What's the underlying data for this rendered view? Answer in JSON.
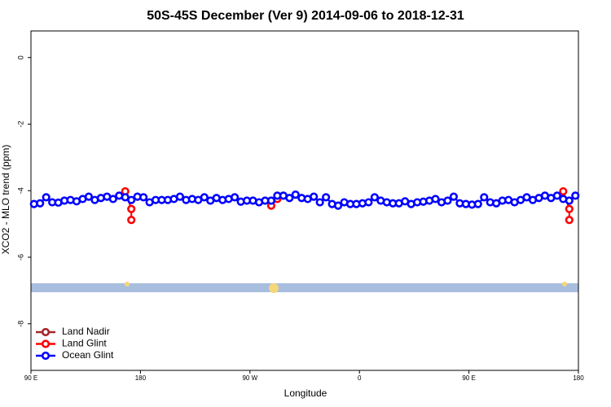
{
  "chart_data": {
    "type": "line",
    "title": "50S-45S December (Ver 9)   2014-09-06 to 2018-12-31",
    "x_label": "Longitude",
    "y_label": "XCO2 - MLO trend (ppm)",
    "xlim": [
      90,
      540
    ],
    "xticks": [
      {
        "value": 90,
        "label": "90 E"
      },
      180,
      {
        "value": 270,
        "label": "90 W"
      },
      {
        "value": 360,
        "label": "0"
      },
      {
        "value": 450,
        "label": "90 E"
      },
      {
        "value": 540,
        "label": "180"
      }
    ],
    "ylim": [
      -9.4,
      0.8
    ],
    "yticks": [
      0,
      -2,
      -4,
      -6,
      -8
    ],
    "legend": "bottom-left",
    "series": [
      {
        "name": "Land Nadir",
        "color": "#a0282a",
        "x": [],
        "values": []
      },
      {
        "name": "Land Glint",
        "color": "#ff0000",
        "x": [
          167.5,
          172.5,
          172.5,
          230,
          287.5,
          292.5,
          400,
          527.5,
          532.5,
          532.5
        ],
        "values": [
          -4.02,
          -4.55,
          -4.88,
          null,
          -4.45,
          -4.25,
          null,
          -4.02,
          -4.55,
          -4.88
        ]
      },
      {
        "name": "Ocean Glint",
        "color": "#0000ff",
        "x": [
          92.5,
          97.5,
          102.5,
          107.5,
          112.5,
          117.5,
          122.5,
          127.5,
          132.5,
          137.5,
          142.5,
          147.5,
          152.5,
          157.5,
          162.5,
          167.5,
          172.5,
          177.5,
          182.5,
          187.5,
          192.5,
          197.5,
          202.5,
          207.5,
          212.5,
          217.5,
          222.5,
          227.5,
          232.5,
          237.5,
          242.5,
          247.5,
          252.5,
          257.5,
          262.5,
          267.5,
          272.5,
          277.5,
          282.5,
          287.5,
          292.5,
          297.5,
          302.5,
          307.5,
          312.5,
          317.5,
          322.5,
          327.5,
          332.5,
          337.5,
          342.5,
          347.5,
          352.5,
          357.5,
          362.5,
          367.5,
          372.5,
          377.5,
          382.5,
          387.5,
          392.5,
          397.5,
          402.5,
          407.5,
          412.5,
          417.5,
          422.5,
          427.5,
          432.5,
          437.5,
          442.5,
          447.5,
          452.5,
          457.5,
          462.5,
          467.5,
          472.5,
          477.5,
          482.5,
          487.5,
          492.5,
          497.5,
          502.5,
          507.5,
          512.5,
          517.5,
          522.5,
          527.5,
          532.5,
          537.5
        ],
        "values": [
          -4.4,
          -4.38,
          -4.2,
          -4.35,
          -4.36,
          -4.3,
          -4.28,
          -4.32,
          -4.25,
          -4.18,
          -4.28,
          -4.22,
          -4.18,
          -4.25,
          -4.15,
          -4.2,
          -4.28,
          -4.18,
          -4.2,
          -4.35,
          -4.28,
          -4.28,
          -4.28,
          -4.25,
          -4.18,
          -4.28,
          -4.25,
          -4.28,
          -4.2,
          -4.3,
          -4.22,
          -4.28,
          -4.25,
          -4.2,
          -4.33,
          -4.3,
          -4.3,
          -4.35,
          -4.3,
          -4.3,
          -4.15,
          -4.15,
          -4.22,
          -4.12,
          -4.22,
          -4.25,
          -4.18,
          -4.35,
          -4.2,
          -4.4,
          -4.45,
          -4.35,
          -4.4,
          -4.4,
          -4.38,
          -4.35,
          -4.2,
          -4.3,
          -4.35,
          -4.38,
          -4.38,
          -4.32,
          -4.4,
          -4.35,
          -4.33,
          -4.3,
          -4.25,
          -4.35,
          -4.3,
          -4.18,
          -4.38,
          -4.4,
          -4.42,
          -4.4,
          -4.2,
          -4.35,
          -4.38,
          -4.3,
          -4.28,
          -4.35,
          -4.28,
          -4.2,
          -4.28,
          -4.22,
          -4.15,
          -4.22,
          -4.15,
          -4.25,
          -4.3,
          -4.15
        ]
      }
    ]
  }
}
